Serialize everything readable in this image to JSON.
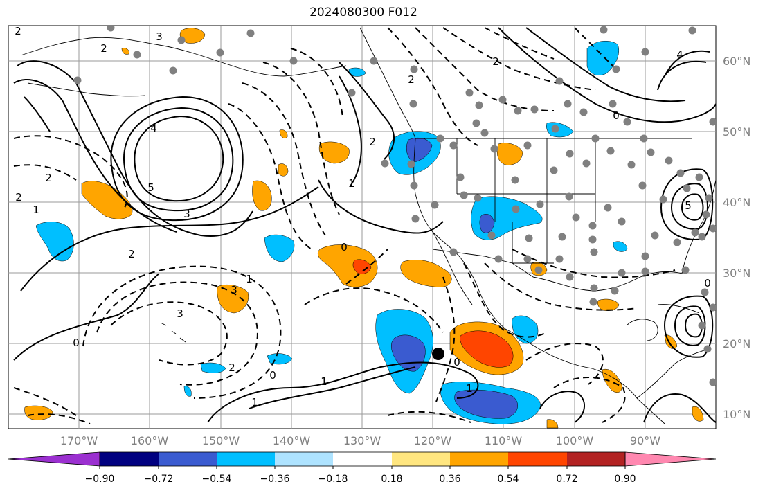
{
  "title": "2024080300 F012",
  "projection": "plate-carree",
  "extent": {
    "lon": [
      -180,
      -80
    ],
    "lat": [
      8,
      65
    ]
  },
  "longitude_labels": [
    "170°W",
    "160°W",
    "150°W",
    "140°W",
    "130°W",
    "120°W",
    "110°W",
    "100°W",
    "90°W"
  ],
  "latitude_labels": [
    "60°N",
    "50°N",
    "40°N",
    "30°N",
    "20°N",
    "10°N"
  ],
  "colorbar": {
    "ticks": [
      "−0.90",
      "−0.72",
      "−0.54",
      "−0.36",
      "−0.18",
      "0.18",
      "0.36",
      "0.54",
      "0.72",
      "0.90"
    ],
    "colors": [
      "#9b30d0",
      "#000080",
      "#3a5bd0",
      "#00bfff",
      "#aee3ff",
      "#ffffff",
      "#ffe680",
      "#ffa500",
      "#ff4500",
      "#b22222",
      "#ff88b0"
    ]
  },
  "contour_labels": [
    "2",
    "3",
    "2",
    "4",
    "3",
    "2",
    "5",
    "3",
    "2",
    "1",
    "0",
    "2",
    "2",
    "1",
    "3",
    "2",
    "2",
    "1",
    "0",
    "1",
    "1",
    "0",
    "1",
    "0",
    "2",
    "4",
    "5",
    "0",
    "0"
  ],
  "storm_marker": {
    "lon": -118.8,
    "lat": 18.5
  }
}
